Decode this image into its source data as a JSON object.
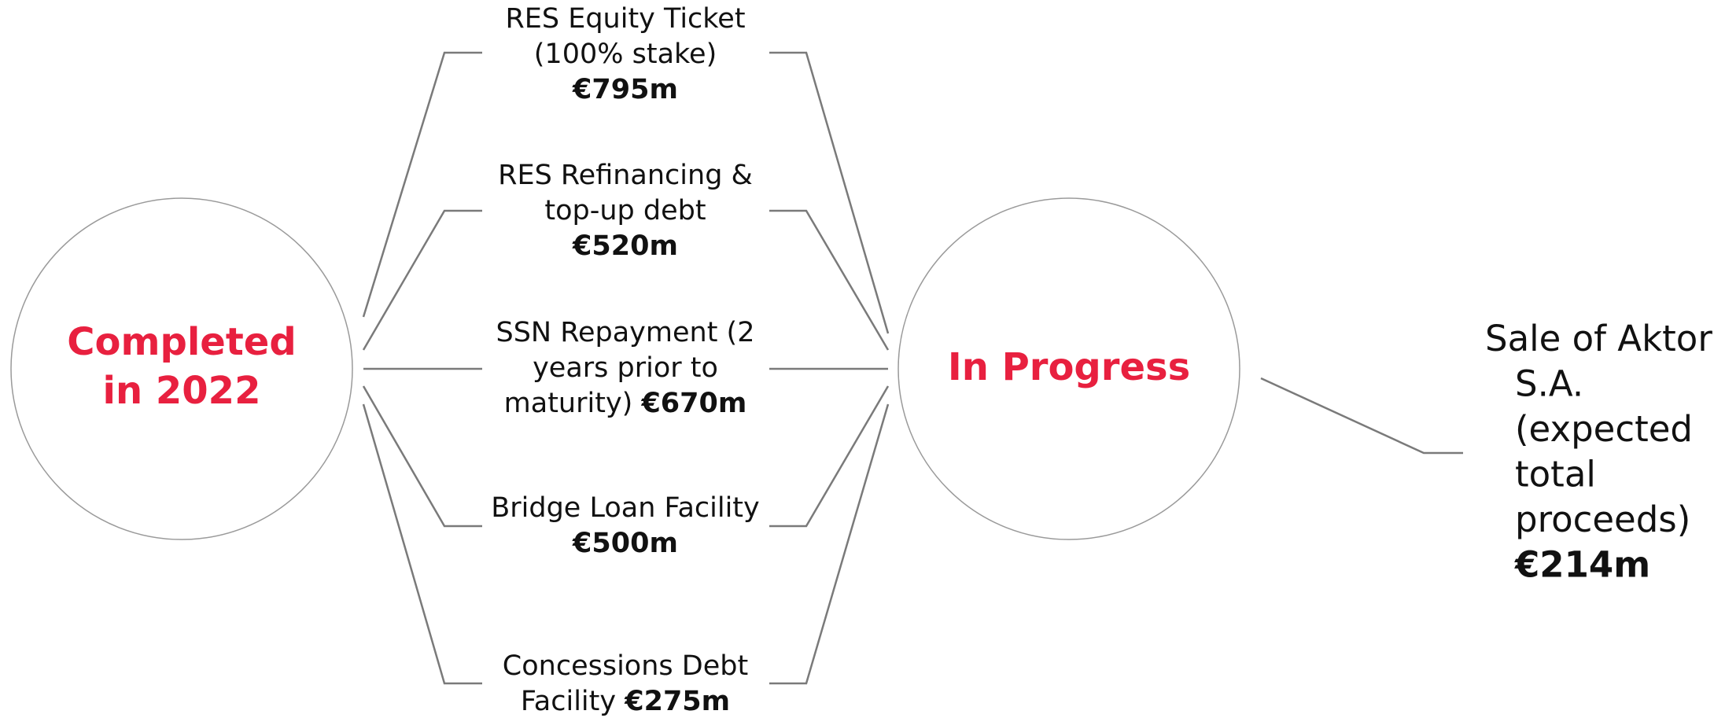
{
  "hubs": [
    {
      "lines": [
        "Completed",
        "in 2022"
      ]
    },
    {
      "lines": [
        "In Progress"
      ]
    }
  ],
  "items": [
    {
      "lines": [
        "RES Equity Ticket",
        "(100% stake)"
      ],
      "amount": "€795m"
    },
    {
      "lines": [
        "RES Refinancing &",
        "top-up debt"
      ],
      "amount": "€520m"
    },
    {
      "lines": [
        "SSN Repayment (2",
        "years prior to",
        "maturity)"
      ],
      "amount": "€670m",
      "inline": true
    },
    {
      "lines": [
        "Bridge Loan Facility"
      ],
      "amount": "€500m"
    },
    {
      "lines": [
        "Concessions Debt",
        "Facility"
      ],
      "amount": "€275m",
      "inline": true
    }
  ],
  "outcome": {
    "lines": [
      "Sale of Aktor",
      "S.A.",
      "(expected",
      "total",
      "proceeds)"
    ],
    "amount": "€214m"
  }
}
